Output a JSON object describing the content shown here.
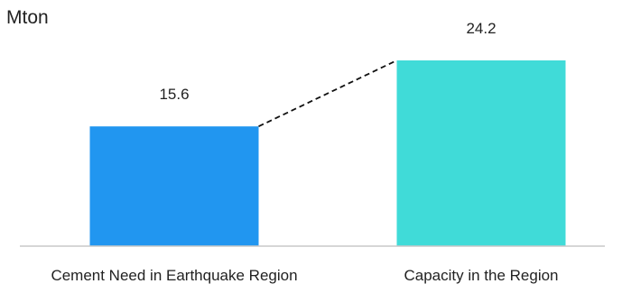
{
  "chart_data": {
    "type": "bar",
    "ylabel": "Mton",
    "categories": [
      "Cement Need in Earthquake Region",
      "Capacity in the Region"
    ],
    "values": [
      15.6,
      24.2
    ],
    "value_labels": [
      "15.6",
      "24.2"
    ],
    "ylim": [
      0,
      30
    ],
    "grid": false,
    "legend": "none",
    "colors": [
      "#2196f0",
      "#40dbd8"
    ],
    "connector": {
      "style": "dashed",
      "from": "top of first bar",
      "to": "top of second bar"
    }
  }
}
